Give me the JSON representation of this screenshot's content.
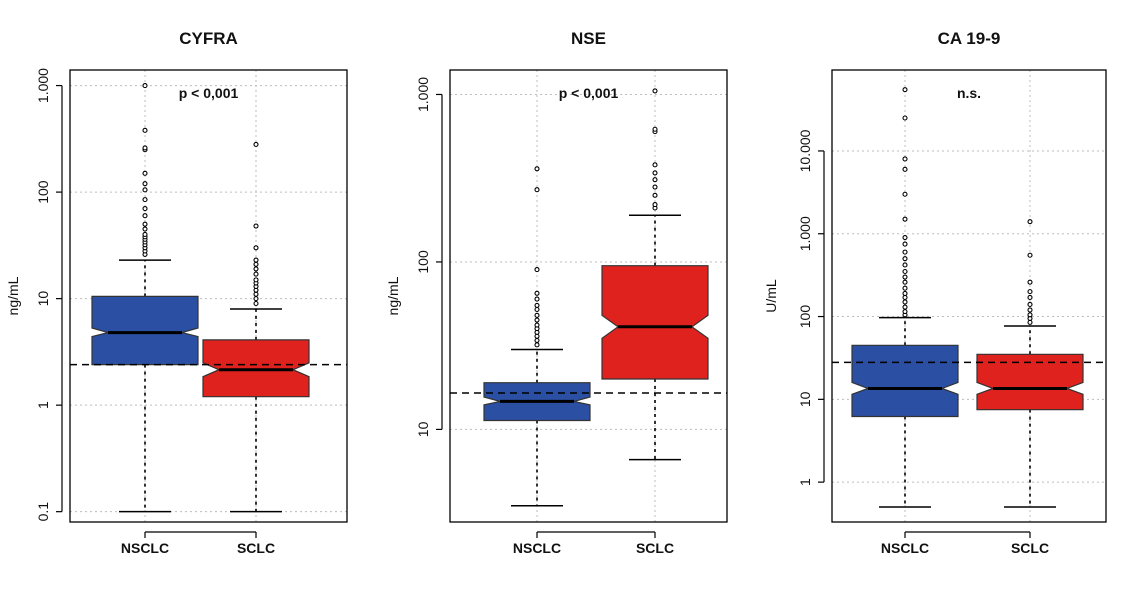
{
  "chart_data": [
    {
      "type": "boxplot",
      "title": "CYFRA",
      "ylabel": "ng/mL",
      "scale": "log",
      "ylim": [
        0.08,
        1400
      ],
      "ticks": [
        0.1,
        1,
        10,
        100,
        1000
      ],
      "tick_labels": [
        "0.1",
        "1",
        "10",
        "100",
        "1.000"
      ],
      "categories": [
        "NSCLC",
        "SCLC"
      ],
      "annotation": "p < 0,001",
      "reference_line": 2.4,
      "colors": [
        "#2b4fa3",
        "#e0221f"
      ],
      "boxes": [
        {
          "category": "NSCLC",
          "whisker_low": 0.1,
          "q1": 2.4,
          "median": 4.8,
          "q3": 10.5,
          "whisker_high": 23,
          "notch_low": 4.4,
          "notch_high": 5.3,
          "outliers": [
            26,
            28,
            30,
            32,
            34,
            36,
            38,
            40,
            45,
            50,
            60,
            70,
            85,
            105,
            120,
            150,
            250,
            260,
            380,
            1000
          ]
        },
        {
          "category": "SCLC",
          "whisker_low": 0.1,
          "q1": 1.2,
          "median": 2.15,
          "q3": 4.1,
          "whisker_high": 8,
          "notch_low": 1.85,
          "notch_high": 2.5,
          "outliers": [
            9,
            10,
            11,
            12,
            13,
            14,
            15,
            17,
            19,
            21,
            23,
            30,
            48,
            280
          ]
        }
      ]
    },
    {
      "type": "boxplot",
      "title": "NSE",
      "ylabel": "ng/mL",
      "scale": "log",
      "ylim": [
        2.8,
        1400
      ],
      "ticks": [
        10,
        100,
        1000
      ],
      "tick_labels": [
        "10",
        "100",
        "1.000"
      ],
      "categories": [
        "NSCLC",
        "SCLC"
      ],
      "annotation": "p < 0,001",
      "reference_line": 16.5,
      "colors": [
        "#2b4fa3",
        "#e0221f"
      ],
      "boxes": [
        {
          "category": "NSCLC",
          "whisker_low": 3.5,
          "q1": 11.3,
          "median": 14.7,
          "q3": 19,
          "whisker_high": 30,
          "notch_low": 14.0,
          "notch_high": 15.6,
          "outliers": [
            32,
            34,
            36,
            38,
            40,
            42,
            45,
            48,
            52,
            55,
            60,
            65,
            90,
            270,
            360
          ]
        },
        {
          "category": "SCLC",
          "whisker_low": 6.6,
          "q1": 20,
          "median": 41,
          "q3": 95,
          "whisker_high": 190,
          "notch_low": 35,
          "notch_high": 48,
          "outliers": [
            210,
            220,
            250,
            280,
            310,
            340,
            380,
            600,
            620,
            1050
          ]
        }
      ]
    },
    {
      "type": "boxplot",
      "title": "CA 19-9",
      "ylabel": "U/mL",
      "scale": "log",
      "ylim": [
        0.33,
        95000
      ],
      "ticks": [
        1,
        10,
        100,
        1000,
        10000
      ],
      "tick_labels": [
        "1",
        "10",
        "100",
        "1.000",
        "10.000"
      ],
      "categories": [
        "NSCLC",
        "SCLC"
      ],
      "annotation": "n.s.",
      "reference_line": 28,
      "colors": [
        "#2b4fa3",
        "#e0221f"
      ],
      "boxes": [
        {
          "category": "NSCLC",
          "whisker_low": 0.5,
          "q1": 6.2,
          "median": 13.5,
          "q3": 45,
          "whisker_high": 97,
          "notch_low": 11.5,
          "notch_high": 16,
          "outliers": [
            105,
            115,
            130,
            150,
            170,
            190,
            220,
            260,
            300,
            350,
            420,
            500,
            600,
            750,
            900,
            1500,
            3000,
            6000,
            8000,
            25000,
            55000
          ]
        },
        {
          "category": "SCLC",
          "whisker_low": 0.5,
          "q1": 7.5,
          "median": 13.5,
          "q3": 35,
          "whisker_high": 77,
          "notch_low": 11.5,
          "notch_high": 16,
          "outliers": [
            85,
            95,
            105,
            120,
            140,
            170,
            200,
            260,
            550,
            1400
          ]
        }
      ]
    }
  ]
}
